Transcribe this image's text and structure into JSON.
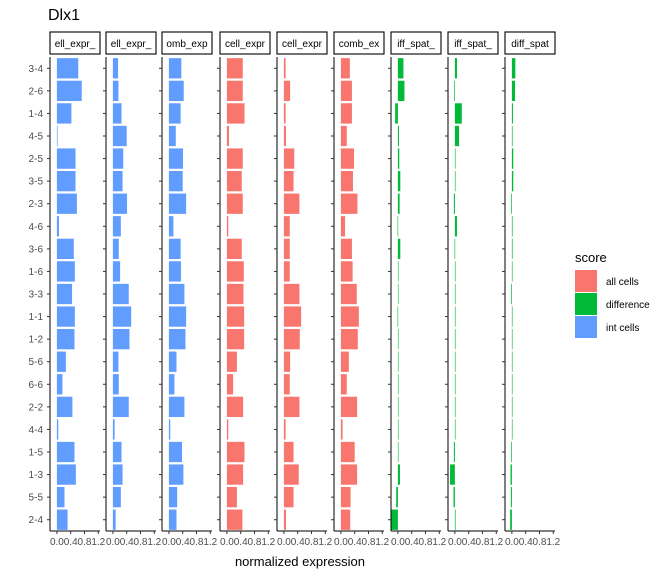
{
  "chart_data": {
    "type": "bar",
    "orientation": "horizontal",
    "title": "Dlx1",
    "xlabel": "normalized expression",
    "ylabel": "",
    "xlim": [
      -0.2,
      1.25
    ],
    "x_ticks": [
      "0.0",
      "0.4",
      "0.8",
      "1.2"
    ],
    "x_tick_values": [
      0.0,
      0.4,
      0.8,
      1.2
    ],
    "categories": [
      "3-4",
      "2-6",
      "1-4",
      "4-5",
      "2-5",
      "3-5",
      "2-3",
      "4-6",
      "3-6",
      "1-6",
      "3-3",
      "1-1",
      "1-2",
      "5-6",
      "6-6",
      "2-2",
      "4-4",
      "1-5",
      "1-3",
      "5-5",
      "2-4"
    ],
    "legend": {
      "title": "score",
      "position": "right",
      "entries": [
        {
          "label": "all cells",
          "color": "#F8766D"
        },
        {
          "label": "difference",
          "color": "#00BA38"
        },
        {
          "label": "int cells",
          "color": "#619CFF"
        }
      ]
    },
    "panels": [
      {
        "strip": "ell_expr_",
        "score": "int cells",
        "values": [
          0.62,
          0.72,
          0.42,
          0.02,
          0.54,
          0.54,
          0.58,
          0.06,
          0.49,
          0.52,
          0.44,
          0.52,
          0.51,
          0.26,
          0.16,
          0.45,
          0.04,
          0.51,
          0.55,
          0.22,
          0.31
        ]
      },
      {
        "strip": "ell_expr_",
        "score": "int cells",
        "values": [
          0.15,
          0.16,
          0.25,
          0.4,
          0.3,
          0.28,
          0.41,
          0.23,
          0.17,
          0.21,
          0.46,
          0.53,
          0.48,
          0.16,
          0.17,
          0.46,
          0.05,
          0.25,
          0.28,
          0.23,
          0.08
        ]
      },
      {
        "strip": "omb_exp",
        "score": "int cells",
        "values": [
          0.36,
          0.43,
          0.34,
          0.2,
          0.41,
          0.4,
          0.5,
          0.13,
          0.34,
          0.35,
          0.45,
          0.5,
          0.48,
          0.22,
          0.16,
          0.45,
          0.04,
          0.38,
          0.42,
          0.24,
          0.22
        ]
      },
      {
        "strip": "cell_expr",
        "score": "all cells",
        "values": [
          0.46,
          0.46,
          0.51,
          0.06,
          0.46,
          0.43,
          0.46,
          0.04,
          0.43,
          0.49,
          0.48,
          0.5,
          0.5,
          0.29,
          0.18,
          0.47,
          0.04,
          0.51,
          0.47,
          0.29,
          0.45
        ]
      },
      {
        "strip": "cell_expr",
        "score": "all cells",
        "values": [
          0.05,
          0.18,
          0.05,
          0.06,
          0.3,
          0.28,
          0.45,
          0.17,
          0.17,
          0.17,
          0.45,
          0.5,
          0.46,
          0.18,
          0.17,
          0.45,
          0.05,
          0.28,
          0.43,
          0.28,
          0.06
        ]
      },
      {
        "strip": "comb_ex",
        "score": "all cells",
        "values": [
          0.26,
          0.32,
          0.32,
          0.17,
          0.38,
          0.35,
          0.48,
          0.12,
          0.32,
          0.34,
          0.46,
          0.52,
          0.49,
          0.23,
          0.17,
          0.47,
          0.05,
          0.4,
          0.47,
          0.28,
          0.27
        ]
      },
      {
        "strip": "iff_spat_",
        "score": "difference",
        "values": [
          0.16,
          0.19,
          -0.08,
          0.03,
          0.04,
          0.07,
          0.05,
          -0.01,
          0.07,
          0.01,
          0.01,
          -0.01,
          0.01,
          0.01,
          0.01,
          0.0,
          0.01,
          0.01,
          0.06,
          -0.05,
          -0.2
        ]
      },
      {
        "strip": "iff_spat_",
        "score": "difference",
        "values": [
          0.06,
          -0.02,
          0.2,
          0.12,
          0.01,
          0.0,
          -0.03,
          0.06,
          -0.01,
          0.01,
          0.0,
          0.0,
          0.01,
          0.0,
          0.01,
          0.01,
          0.0,
          -0.03,
          -0.14,
          -0.04,
          0.02
        ]
      },
      {
        "strip": "diff_spat",
        "score": "difference",
        "values": [
          0.1,
          0.09,
          0.03,
          0.02,
          0.04,
          0.04,
          -0.02,
          0.02,
          0.02,
          0.01,
          -0.02,
          0.0,
          0.01,
          0.01,
          0.01,
          0.0,
          0.0,
          -0.02,
          -0.04,
          -0.03,
          -0.05
        ]
      }
    ]
  }
}
